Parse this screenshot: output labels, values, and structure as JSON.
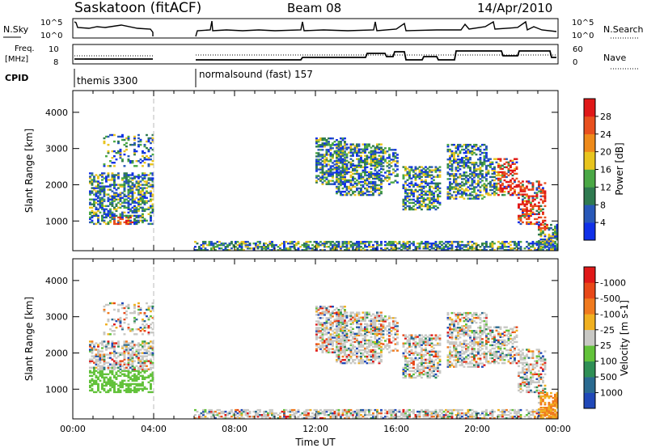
{
  "header": {
    "station": "Saskatoon (fitACF)",
    "beam": "Beam 08",
    "date": "14/Apr/2010"
  },
  "panels": {
    "nsky_label": "N.Sky",
    "nsky_ticks": [
      "10^5",
      "10^0"
    ],
    "nsearch_label": "N.Search",
    "nsearch_ticks": [
      "10^5",
      "10^0"
    ],
    "freq_label_1": "Freq.",
    "freq_label_2": "[MHz]",
    "freq_ticks": [
      "10",
      "8"
    ],
    "nave_label": "Nave",
    "nave_ticks": [
      "60",
      "0"
    ],
    "cpid_label": "CPID",
    "cpid_segments": [
      "themis 3300",
      "normalsound (fast) 157"
    ]
  },
  "chart_data": [
    {
      "type": "heatmap",
      "title": "",
      "xlabel": "",
      "ylabel": "Slant Range [km]",
      "xlim": [
        0,
        24
      ],
      "ylim": [
        180,
        4600
      ],
      "y_ticks": [
        1000,
        2000,
        3000,
        4000
      ],
      "colorbar": {
        "label": "Power [dB]",
        "ticks": [
          "4",
          "8",
          "12",
          "16",
          "20",
          "24",
          "28"
        ],
        "colors": [
          "#1030e8",
          "#2858b8",
          "#2f7a50",
          "#4aa845",
          "#e8c41e",
          "#ee8a1a",
          "#e8501e",
          "#e01818"
        ]
      }
    },
    {
      "type": "heatmap",
      "title": "",
      "xlabel": "Time UT",
      "ylabel": "Slant Range [km]",
      "xlim": [
        0,
        24
      ],
      "ylim": [
        180,
        4600
      ],
      "x_ticks": [
        "00:00",
        "04:00",
        "08:00",
        "12:00",
        "16:00",
        "20:00",
        "00:00"
      ],
      "y_ticks": [
        1000,
        2000,
        3000,
        4000
      ],
      "colorbar": {
        "label": "Velocity [m s-1]",
        "ticks": [
          "1000",
          "500",
          "100",
          "25",
          "-25",
          "-100",
          "-500",
          "-1000"
        ],
        "colors": [
          "#2048b8",
          "#2a6a90",
          "#2f8f55",
          "#62c23a",
          "#c8c8c4",
          "#f0b020",
          "#f07a1e",
          "#e84818",
          "#e01818"
        ]
      }
    }
  ]
}
